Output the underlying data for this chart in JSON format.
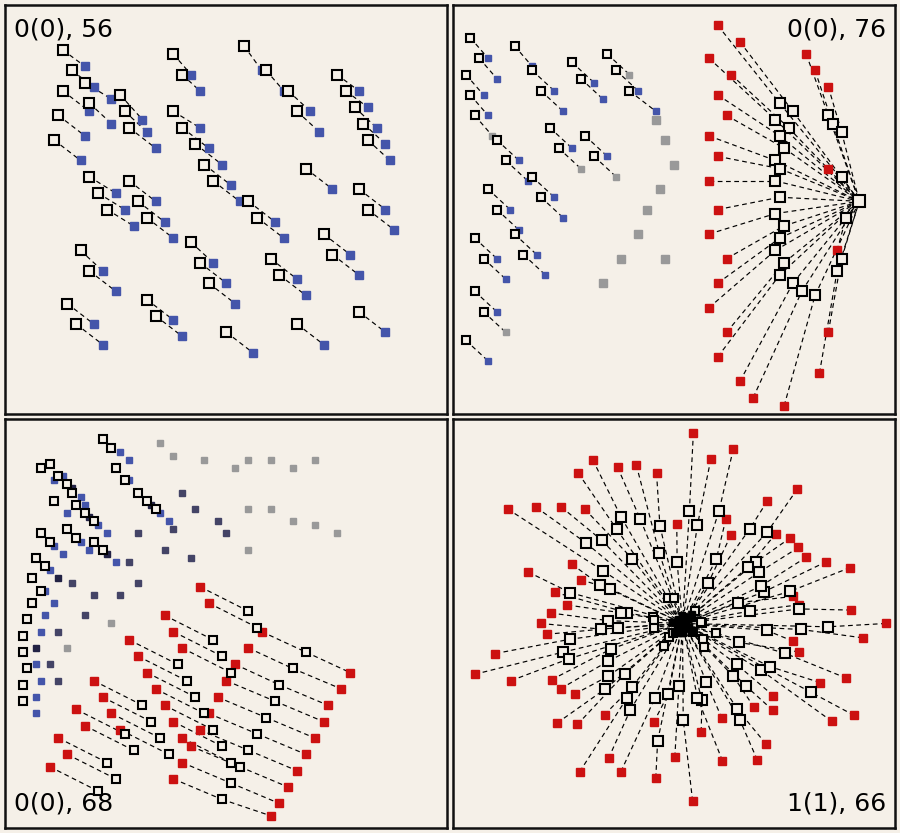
{
  "background_color": "#f5f0e8",
  "border_color": "#111111",
  "labels": {
    "top_left": "0(0), 56",
    "top_right": "0(0), 76",
    "bottom_left": "0(0), 68",
    "bottom_right": "1(1), 66"
  },
  "label_fontsize": 18,
  "blue_color": "#4455aa",
  "red_color": "#cc1111",
  "gray_color": "#999999",
  "dark_blue": "#222244"
}
